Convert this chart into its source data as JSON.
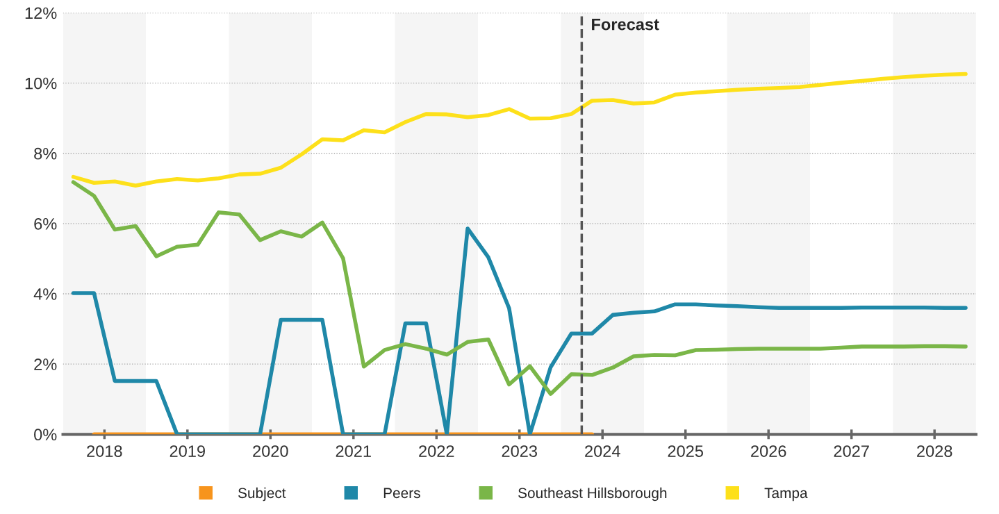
{
  "chart_data": {
    "type": "line",
    "x": [
      2017.625,
      2017.875,
      2018.125,
      2018.375,
      2018.625,
      2018.875,
      2019.125,
      2019.375,
      2019.625,
      2019.875,
      2020.125,
      2020.375,
      2020.625,
      2020.875,
      2021.125,
      2021.375,
      2021.625,
      2021.875,
      2022.125,
      2022.375,
      2022.625,
      2022.875,
      2023.125,
      2023.375,
      2023.625,
      2023.875,
      2024.125,
      2024.375,
      2024.625,
      2024.875,
      2025.125,
      2025.375,
      2025.625,
      2025.875,
      2026.125,
      2026.375,
      2026.625,
      2026.875,
      2027.125,
      2027.375,
      2027.625,
      2027.875,
      2028.125,
      2028.375
    ],
    "series": [
      {
        "name": "Subject",
        "color": "#f7941d",
        "values": [
          null,
          0,
          0,
          0,
          0,
          0,
          0,
          0,
          0,
          0,
          0,
          0,
          0,
          0,
          0,
          0,
          0,
          0,
          0,
          0,
          0,
          0,
          0,
          0,
          0,
          0,
          null,
          null,
          null,
          null,
          null,
          null,
          null,
          null,
          null,
          null,
          null,
          null,
          null,
          null,
          null,
          null,
          null,
          null
        ]
      },
      {
        "name": "Peers",
        "color": "#1f88a8",
        "values": [
          4.02,
          4.02,
          1.52,
          1.52,
          1.52,
          0,
          0,
          0,
          0,
          0,
          3.26,
          3.26,
          3.26,
          0,
          0,
          0,
          3.16,
          3.16,
          0,
          5.86,
          5.04,
          3.59,
          0,
          1.91,
          2.87,
          2.87,
          3.4,
          3.46,
          3.5,
          3.7,
          3.7,
          3.67,
          3.65,
          3.62,
          3.6,
          3.6,
          3.6,
          3.6,
          3.61,
          3.61,
          3.61,
          3.61,
          3.6,
          3.6
        ]
      },
      {
        "name": "Southeast Hillsborough",
        "color": "#7ab648",
        "values": [
          7.18,
          6.79,
          5.83,
          5.93,
          5.07,
          5.34,
          5.4,
          6.32,
          6.26,
          5.53,
          5.78,
          5.63,
          6.03,
          5.01,
          1.93,
          2.4,
          2.57,
          2.44,
          2.27,
          2.63,
          2.7,
          1.42,
          1.94,
          1.15,
          1.71,
          1.69,
          1.9,
          2.22,
          2.26,
          2.25,
          2.4,
          2.41,
          2.43,
          2.44,
          2.44,
          2.44,
          2.44,
          2.47,
          2.5,
          2.5,
          2.5,
          2.51,
          2.51,
          2.5
        ]
      },
      {
        "name": "Tampa",
        "color": "#fde01a",
        "values": [
          7.33,
          7.16,
          7.2,
          7.08,
          7.2,
          7.27,
          7.23,
          7.29,
          7.4,
          7.42,
          7.59,
          7.97,
          8.4,
          8.37,
          8.66,
          8.6,
          8.89,
          9.12,
          9.11,
          9.03,
          9.09,
          9.26,
          8.99,
          9.0,
          9.12,
          9.5,
          9.52,
          9.42,
          9.45,
          9.67,
          9.73,
          9.77,
          9.81,
          9.84,
          9.86,
          9.89,
          9.95,
          10.01,
          10.06,
          10.12,
          10.17,
          10.21,
          10.24,
          10.26
        ]
      }
    ],
    "xlim": [
      2017.5,
      2028.5
    ],
    "xticks": [
      2018,
      2019,
      2020,
      2021,
      2022,
      2023,
      2024,
      2025,
      2026,
      2027,
      2028
    ],
    "ylim": [
      0,
      12
    ],
    "yticks": [
      {
        "value": 0,
        "label": "0%"
      },
      {
        "value": 2,
        "label": "2%"
      },
      {
        "value": 4,
        "label": "4%"
      },
      {
        "value": 6,
        "label": "6%"
      },
      {
        "value": 8,
        "label": "8%"
      },
      {
        "value": 10,
        "label": "10%"
      },
      {
        "value": 12,
        "label": "12%"
      }
    ],
    "grid": "y",
    "legend": "bottom",
    "marker": "none",
    "line_style": "solid",
    "ref_lines": [
      {
        "axis": "x",
        "value": 2023.75,
        "label": "Forecast",
        "color": "#555555",
        "line_style": "dashed"
      }
    ],
    "bands": [
      {
        "axis": "x",
        "from": 2017.5,
        "to": 2018.5,
        "color": "#f5f5f5"
      },
      {
        "axis": "x",
        "from": 2019.5,
        "to": 2020.5,
        "color": "#f5f5f5"
      },
      {
        "axis": "x",
        "from": 2021.5,
        "to": 2022.5,
        "color": "#f5f5f5"
      },
      {
        "axis": "x",
        "from": 2023.5,
        "to": 2024.5,
        "color": "#f5f5f5"
      },
      {
        "axis": "x",
        "from": 2025.5,
        "to": 2026.5,
        "color": "#f5f5f5"
      },
      {
        "axis": "x",
        "from": 2027.5,
        "to": 2028.5,
        "color": "#f5f5f5"
      }
    ]
  }
}
